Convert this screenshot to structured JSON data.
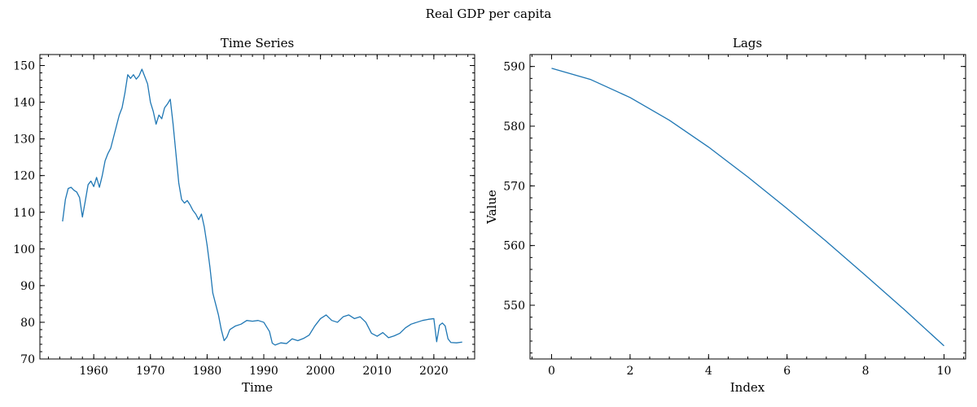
{
  "figure": {
    "title": "Real GDP per capita"
  },
  "chart_data": [
    {
      "type": "line",
      "title": "Time Series",
      "xlabel": "Time",
      "ylabel": "",
      "xlim": [
        1950.5,
        2027.2
      ],
      "ylim": [
        70,
        153
      ],
      "xticks": [
        1960,
        1970,
        1980,
        1990,
        2000,
        2010,
        2020
      ],
      "yticks": [
        70,
        80,
        90,
        100,
        110,
        120,
        130,
        140,
        150
      ],
      "grid": false,
      "series": [
        {
          "color": "#1f77b4",
          "points": [
            [
              1954.5,
              107.5
            ],
            [
              1955.0,
              113.5
            ],
            [
              1955.5,
              116.5
            ],
            [
              1956.0,
              116.8
            ],
            [
              1956.5,
              116.0
            ],
            [
              1957.0,
              115.5
            ],
            [
              1957.5,
              114.0
            ],
            [
              1958.0,
              108.7
            ],
            [
              1958.5,
              113.0
            ],
            [
              1959.0,
              117.5
            ],
            [
              1959.5,
              118.5
            ],
            [
              1960.0,
              117.0
            ],
            [
              1960.5,
              119.5
            ],
            [
              1961.0,
              116.8
            ],
            [
              1961.5,
              120.0
            ],
            [
              1962.0,
              124.0
            ],
            [
              1962.5,
              126.0
            ],
            [
              1963.0,
              127.5
            ],
            [
              1963.5,
              130.5
            ],
            [
              1964.0,
              133.5
            ],
            [
              1964.5,
              136.5
            ],
            [
              1965.0,
              138.5
            ],
            [
              1965.5,
              142.5
            ],
            [
              1966.0,
              147.5
            ],
            [
              1966.5,
              146.5
            ],
            [
              1967.0,
              147.5
            ],
            [
              1967.5,
              146.3
            ],
            [
              1968.0,
              147.2
            ],
            [
              1968.5,
              149.0
            ],
            [
              1969.0,
              147.0
            ],
            [
              1969.5,
              145.0
            ],
            [
              1970.0,
              140.0
            ],
            [
              1970.5,
              137.5
            ],
            [
              1971.0,
              134.0
            ],
            [
              1971.5,
              136.5
            ],
            [
              1972.0,
              135.5
            ],
            [
              1972.5,
              138.5
            ],
            [
              1973.0,
              139.5
            ],
            [
              1973.5,
              140.8
            ],
            [
              1974.0,
              134.0
            ],
            [
              1974.5,
              126.0
            ],
            [
              1975.0,
              118.0
            ],
            [
              1975.5,
              113.5
            ],
            [
              1976.0,
              112.5
            ],
            [
              1976.5,
              113.2
            ],
            [
              1977.0,
              112.0
            ],
            [
              1977.5,
              110.5
            ],
            [
              1978.0,
              109.5
            ],
            [
              1978.5,
              108.0
            ],
            [
              1979.0,
              109.5
            ],
            [
              1979.5,
              106.0
            ],
            [
              1980.0,
              101.0
            ],
            [
              1980.5,
              95.0
            ],
            [
              1981.0,
              88.0
            ],
            [
              1981.5,
              85.0
            ],
            [
              1982.0,
              82.0
            ],
            [
              1982.5,
              78.0
            ],
            [
              1983.0,
              75.0
            ],
            [
              1983.5,
              76.0
            ],
            [
              1984.0,
              78.0
            ],
            [
              1985.0,
              79.0
            ],
            [
              1986.0,
              79.5
            ],
            [
              1987.0,
              80.5
            ],
            [
              1988.0,
              80.3
            ],
            [
              1989.0,
              80.5
            ],
            [
              1990.0,
              80.0
            ],
            [
              1991.0,
              77.5
            ],
            [
              1991.5,
              74.3
            ],
            [
              1992.0,
              73.8
            ],
            [
              1993.0,
              74.4
            ],
            [
              1994.0,
              74.2
            ],
            [
              1995.0,
              75.5
            ],
            [
              1996.0,
              75.0
            ],
            [
              1997.0,
              75.6
            ],
            [
              1998.0,
              76.5
            ],
            [
              1999.0,
              79.0
            ],
            [
              2000.0,
              81.0
            ],
            [
              2001.0,
              82.0
            ],
            [
              2002.0,
              80.5
            ],
            [
              2003.0,
              80.0
            ],
            [
              2004.0,
              81.5
            ],
            [
              2005.0,
              82.0
            ],
            [
              2006.0,
              81.0
            ],
            [
              2007.0,
              81.5
            ],
            [
              2008.0,
              80.0
            ],
            [
              2009.0,
              77.0
            ],
            [
              2010.0,
              76.2
            ],
            [
              2011.0,
              77.2
            ],
            [
              2012.0,
              75.8
            ],
            [
              2013.0,
              76.3
            ],
            [
              2014.0,
              77.0
            ],
            [
              2015.0,
              78.5
            ],
            [
              2016.0,
              79.5
            ],
            [
              2017.0,
              80.0
            ],
            [
              2018.0,
              80.5
            ],
            [
              2019.0,
              80.8
            ],
            [
              2020.0,
              81.0
            ],
            [
              2020.5,
              74.7
            ],
            [
              2021.0,
              79.2
            ],
            [
              2021.5,
              79.8
            ],
            [
              2022.0,
              79.0
            ],
            [
              2022.5,
              75.5
            ],
            [
              2023.0,
              74.5
            ],
            [
              2024.0,
              74.4
            ],
            [
              2025.0,
              74.6
            ]
          ]
        }
      ]
    },
    {
      "type": "line",
      "title": "Lags",
      "xlabel": "Index",
      "ylabel": "Value",
      "xlim": [
        -0.55,
        10.55
      ],
      "ylim": [
        541,
        592
      ],
      "xticks": [
        0,
        2,
        4,
        6,
        8,
        10
      ],
      "yticks": [
        550,
        560,
        570,
        580,
        590
      ],
      "grid": false,
      "series": [
        {
          "color": "#1f77b4",
          "points": [
            [
              0,
              589.7
            ],
            [
              1,
              587.8
            ],
            [
              2,
              584.8
            ],
            [
              3,
              581.0
            ],
            [
              4,
              576.5
            ],
            [
              5,
              571.5
            ],
            [
              6,
              566.2
            ],
            [
              7,
              560.7
            ],
            [
              8,
              555.0
            ],
            [
              9,
              549.2
            ],
            [
              10,
              543.2
            ]
          ]
        }
      ]
    }
  ]
}
